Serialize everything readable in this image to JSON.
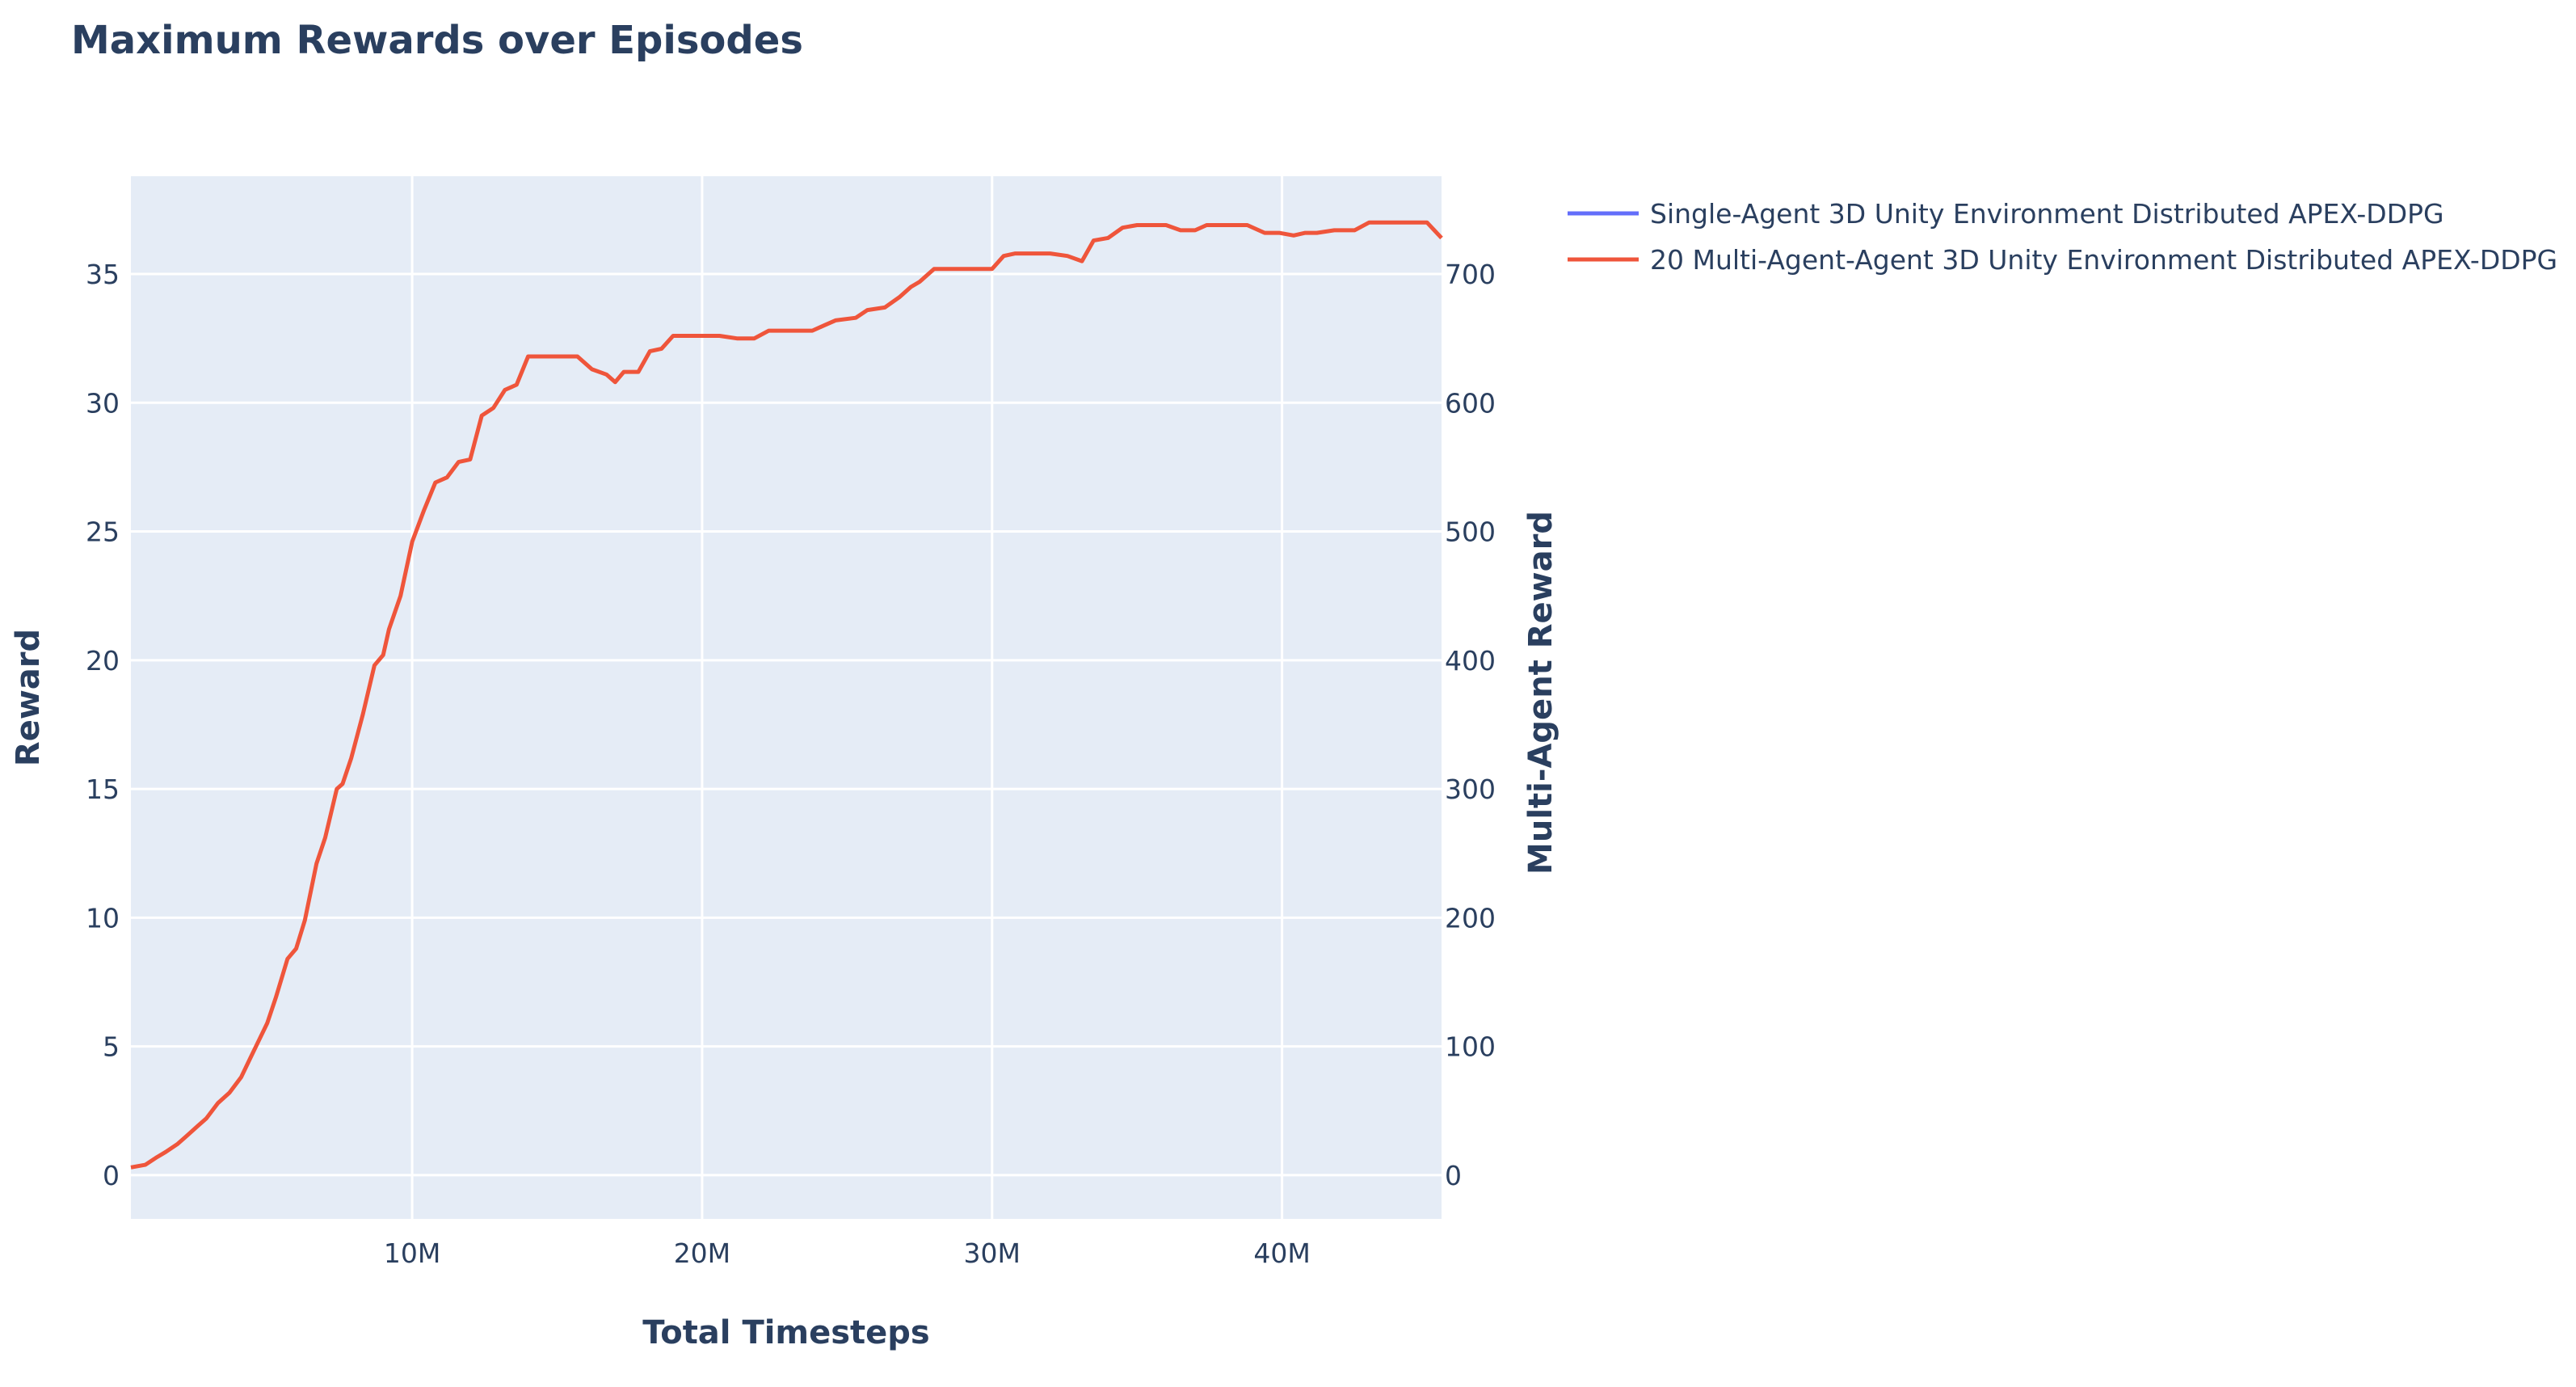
{
  "chart_data": {
    "type": "line",
    "title": "Maximum Rewards over Episodes",
    "xlabel": "Total Timesteps",
    "ylabel": "Reward",
    "y2label": "Multi-Agent Reward",
    "xlim": [
      300000,
      45500000
    ],
    "ylim": [
      -1.7,
      38.8
    ],
    "y2lim": [
      -34,
      776
    ],
    "x_ticks": [
      {
        "value": 10000000,
        "label": "10M"
      },
      {
        "value": 20000000,
        "label": "20M"
      },
      {
        "value": 30000000,
        "label": "30M"
      },
      {
        "value": 40000000,
        "label": "40M"
      }
    ],
    "y_ticks": [
      {
        "value": 0,
        "label": "0"
      },
      {
        "value": 5,
        "label": "5"
      },
      {
        "value": 10,
        "label": "10"
      },
      {
        "value": 15,
        "label": "15"
      },
      {
        "value": 20,
        "label": "20"
      },
      {
        "value": 25,
        "label": "25"
      },
      {
        "value": 30,
        "label": "30"
      },
      {
        "value": 35,
        "label": "35"
      }
    ],
    "y2_ticks": [
      {
        "value": 0,
        "label": "0"
      },
      {
        "value": 100,
        "label": "100"
      },
      {
        "value": 200,
        "label": "200"
      },
      {
        "value": 300,
        "label": "300"
      },
      {
        "value": 400,
        "label": "400"
      },
      {
        "value": 500,
        "label": "500"
      },
      {
        "value": 600,
        "label": "600"
      },
      {
        "value": 700,
        "label": "700"
      }
    ],
    "grid": true,
    "legend_position": "top-right",
    "series": [
      {
        "name": "Single-Agent 3D Unity Environment Distributed APEX-DDPG",
        "color": "#636efa",
        "axis": "left",
        "x": [],
        "y": []
      },
      {
        "name": "20 Multi-Agent-Agent 3D Unity Environment Distributed APEX-DDPG",
        "color": "#ef553b",
        "axis": "right",
        "x": [
          300000,
          800000,
          1200000,
          1500000,
          1900000,
          2200000,
          2600000,
          2900000,
          3300000,
          3700000,
          4100000,
          4400000,
          4700000,
          5000000,
          5300000,
          5700000,
          6000000,
          6300000,
          6700000,
          7000000,
          7400000,
          7600000,
          7900000,
          8300000,
          8700000,
          9000000,
          9200000,
          9600000,
          10000000,
          10400000,
          10800000,
          11200000,
          11600000,
          12000000,
          12400000,
          12800000,
          13200000,
          13600000,
          14000000,
          14400000,
          14800000,
          15200000,
          15700000,
          16200000,
          16700000,
          17000000,
          17300000,
          17500000,
          17800000,
          18200000,
          18600000,
          19000000,
          19400000,
          20000000,
          20600000,
          21200000,
          21800000,
          22300000,
          23000000,
          23800000,
          24200000,
          24600000,
          25300000,
          25700000,
          26300000,
          26800000,
          27200000,
          27500000,
          28000000,
          29000000,
          29500000,
          30000000,
          30400000,
          30800000,
          31300000,
          32000000,
          32600000,
          33100000,
          33500000,
          34000000,
          34500000,
          35000000,
          35500000,
          36000000,
          36500000,
          37000000,
          37400000,
          37800000,
          38300000,
          38800000,
          39400000,
          39900000,
          40400000,
          40800000,
          41200000,
          41800000,
          42500000,
          43000000,
          43500000,
          44000000,
          44500000,
          45000000,
          45500000
        ],
        "y": [
          6,
          8,
          14,
          18,
          24,
          30,
          38,
          44,
          56,
          64,
          76,
          90,
          104,
          118,
          138,
          168,
          176,
          198,
          242,
          262,
          300,
          304,
          324,
          358,
          396,
          404,
          424,
          450,
          492,
          516,
          538,
          542,
          554,
          556,
          590,
          596,
          610,
          614,
          636,
          636,
          636,
          636,
          636,
          626,
          622,
          616,
          624,
          624,
          624,
          640,
          642,
          652,
          652,
          652,
          652,
          650,
          650,
          656,
          656,
          656,
          660,
          664,
          666,
          672,
          674,
          682,
          690,
          694,
          704,
          704,
          704,
          704,
          714,
          716,
          716,
          716,
          714,
          710,
          726,
          728,
          736,
          738,
          738,
          738,
          734,
          734,
          738,
          738,
          738,
          738,
          732,
          732,
          730,
          732,
          732,
          734,
          734,
          740,
          740,
          740,
          740,
          740,
          728
        ]
      }
    ]
  }
}
